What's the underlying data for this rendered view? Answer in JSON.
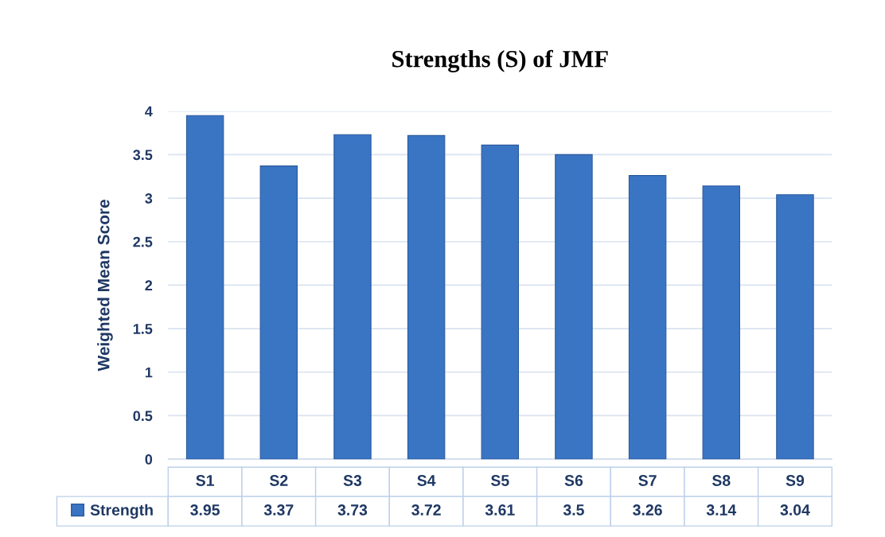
{
  "chart_data": {
    "type": "bar",
    "title": "Strengths (S) of JMF",
    "ylabel": "Weighted Mean Score",
    "categories": [
      "S1",
      "S2",
      "S3",
      "S4",
      "S5",
      "S6",
      "S7",
      "S8",
      "S9"
    ],
    "series": [
      {
        "name": "Strength",
        "color": "#3a75c4",
        "values": [
          3.95,
          3.37,
          3.73,
          3.72,
          3.61,
          3.5,
          3.26,
          3.14,
          3.04
        ]
      }
    ],
    "ylim": [
      0,
      4
    ],
    "yticks": [
      0,
      0.5,
      1,
      1.5,
      2,
      2.5,
      3,
      3.5,
      4
    ],
    "grid": "y",
    "data_labels": true,
    "legend": "bottom left"
  }
}
